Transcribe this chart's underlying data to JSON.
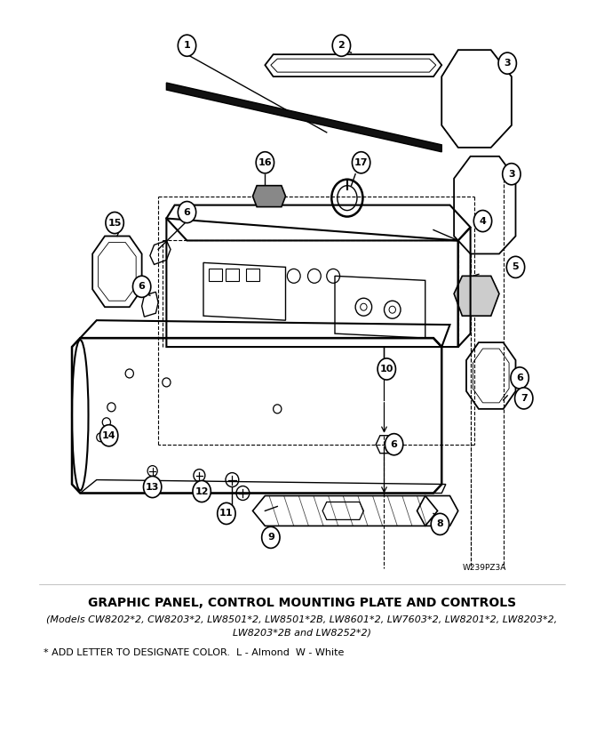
{
  "title": "GRAPHIC PANEL, CONTROL MOUNTING PLATE AND CONTROLS",
  "subtitle_line1": "(Models CW8202*2, CW8203*2, LW8501*2, LW8501*2B, LW8601*2, LW7603*2, LW8201*2, LW8203*2,",
  "subtitle_line2": "LW8203*2B and LW8252*2)",
  "footnote": "* ADD LETTER TO DESIGNATE COLOR.  L - Almond  W - White",
  "watermark": "W239PZ3A",
  "bg_color": "#ffffff"
}
